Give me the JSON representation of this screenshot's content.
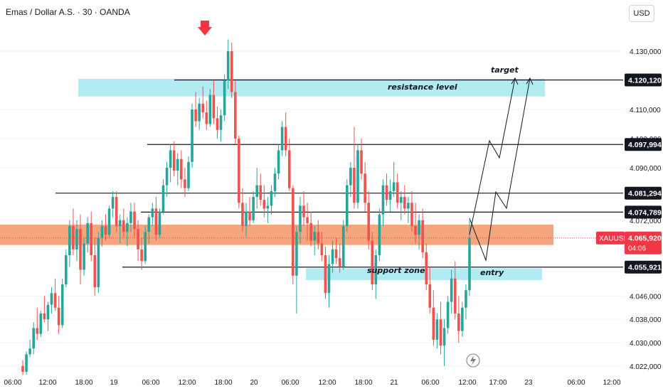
{
  "header": {
    "symbol_title": "Emas / Dollar A.S. · 30 · OANDA",
    "currency_button": "USD"
  },
  "price_axis": {
    "ticks": [
      4130,
      4110,
      4100,
      4090,
      4072,
      4046,
      4038,
      4030,
      4022
    ],
    "tick_labels": [
      "4.130,000",
      "4.110,000",
      "4.100,000",
      "4.090,000",
      "4.072,000",
      "4.046,000",
      "4.038,000",
      "4.030,000",
      "4.022,000"
    ]
  },
  "time_axis": {
    "labels": [
      "06:00",
      "12:00",
      "18:00",
      "19",
      "06:00",
      "12:00",
      "18:00",
      "20",
      "06:00",
      "12:00",
      "18:00",
      "21",
      "06:00",
      "12:00",
      "17:00",
      "23",
      "06:00",
      "12:00"
    ]
  },
  "levels": [
    {
      "value": 4120.12,
      "label": "4.120,120"
    },
    {
      "value": 4097.994,
      "label": "4.097,994"
    },
    {
      "value": 4081.294,
      "label": "4.081,294"
    },
    {
      "value": 4074.789,
      "label": "4.074,789"
    },
    {
      "value": 4055.921,
      "label": "4.055,921"
    }
  ],
  "current_price": {
    "symbol": "XAUUSD",
    "value": 4065.92,
    "label": "4.065,920",
    "countdown": "04:06"
  },
  "zones": {
    "resistance": {
      "label": "resistance level",
      "from": 4114.5,
      "to": 4120.5
    },
    "support": {
      "label": "support zone",
      "from": 4051.5,
      "to": 4055.5
    },
    "entry_zone": {
      "from": 4063.5,
      "to": 4070.5
    }
  },
  "annotations": {
    "target": "target",
    "entry": "entry"
  },
  "colors": {
    "up": "#26a69a",
    "down": "#ef5350",
    "resistance_zone": "#b2ebf2",
    "entry_zone": "#f4a77e",
    "support_zone": "#b2ebf2",
    "current_price_tag": "#f23645",
    "level_tag": "#131722",
    "marker": "#f23645"
  },
  "chart_data": {
    "type": "candlestick",
    "title": "Emas / Dollar A.S. · 30 · OANDA",
    "ylim": [
      4018,
      4136
    ],
    "series": [
      {
        "name": "XAUUSD",
        "candles": [
          [
            4022,
            4024,
            4019,
            4020
          ],
          [
            4020,
            4027,
            4019,
            4026
          ],
          [
            4026,
            4031,
            4025,
            4028
          ],
          [
            4028,
            4037,
            4026,
            4035
          ],
          [
            4035,
            4042,
            4031,
            4033
          ],
          [
            4033,
            4041,
            4032,
            4040
          ],
          [
            4040,
            4046,
            4037,
            4038
          ],
          [
            4038,
            4044,
            4034,
            4043
          ],
          [
            4043,
            4049,
            4040,
            4047
          ],
          [
            4047,
            4052,
            4041,
            4042
          ],
          [
            4042,
            4046,
            4033,
            4036
          ],
          [
            4036,
            4052,
            4035,
            4050
          ],
          [
            4050,
            4062,
            4049,
            4060
          ],
          [
            4060,
            4072,
            4056,
            4070
          ],
          [
            4070,
            4076,
            4060,
            4062
          ],
          [
            4062,
            4072,
            4058,
            4069
          ],
          [
            4069,
            4074,
            4050,
            4055
          ],
          [
            4055,
            4066,
            4053,
            4064
          ],
          [
            4064,
            4073,
            4061,
            4071
          ],
          [
            4071,
            4075,
            4058,
            4060
          ],
          [
            4060,
            4066,
            4046,
            4049
          ],
          [
            4049,
            4068,
            4047,
            4066
          ],
          [
            4066,
            4072,
            4063,
            4070
          ],
          [
            4070,
            4074,
            4065,
            4067
          ],
          [
            4067,
            4077,
            4066,
            4076
          ],
          [
            4076,
            4082,
            4073,
            4080
          ],
          [
            4080,
            4082,
            4068,
            4070
          ],
          [
            4070,
            4074,
            4064,
            4072
          ],
          [
            4072,
            4076,
            4066,
            4068
          ],
          [
            4068,
            4073,
            4063,
            4071
          ],
          [
            4071,
            4078,
            4068,
            4075
          ],
          [
            4075,
            4078,
            4066,
            4069
          ],
          [
            4069,
            4072,
            4058,
            4062
          ],
          [
            4062,
            4066,
            4055,
            4058
          ],
          [
            4058,
            4070,
            4057,
            4068
          ],
          [
            4068,
            4074,
            4064,
            4073
          ],
          [
            4073,
            4078,
            4070,
            4076
          ],
          [
            4076,
            4080,
            4065,
            4067
          ],
          [
            4067,
            4076,
            4066,
            4075
          ],
          [
            4075,
            4086,
            4074,
            4084
          ],
          [
            4084,
            4092,
            4080,
            4090
          ],
          [
            4090,
            4098,
            4085,
            4096
          ],
          [
            4096,
            4099,
            4087,
            4089
          ],
          [
            4089,
            4095,
            4084,
            4093
          ],
          [
            4093,
            4096,
            4083,
            4086
          ],
          [
            4086,
            4090,
            4080,
            4083
          ],
          [
            4083,
            4094,
            4082,
            4092
          ],
          [
            4092,
            4112,
            4090,
            4110
          ],
          [
            4110,
            4116,
            4104,
            4106
          ],
          [
            4106,
            4114,
            4103,
            4112
          ],
          [
            4112,
            4118,
            4107,
            4109
          ],
          [
            4109,
            4113,
            4103,
            4105
          ],
          [
            4105,
            4117,
            4104,
            4115
          ],
          [
            4115,
            4120,
            4105,
            4107
          ],
          [
            4107,
            4111,
            4100,
            4103
          ],
          [
            4103,
            4110,
            4099,
            4108
          ],
          [
            4108,
            4122,
            4106,
            4120
          ],
          [
            4120,
            4134,
            4117,
            4130
          ],
          [
            4130,
            4133,
            4114,
            4116
          ],
          [
            4116,
            4120,
            4098,
            4100
          ],
          [
            4100,
            4101,
            4076,
            4078
          ],
          [
            4078,
            4083,
            4068,
            4070
          ],
          [
            4070,
            4078,
            4066,
            4075
          ],
          [
            4075,
            4080,
            4070,
            4072
          ],
          [
            4072,
            4082,
            4071,
            4080
          ],
          [
            4080,
            4090,
            4076,
            4084
          ],
          [
            4084,
            4088,
            4077,
            4079
          ],
          [
            4079,
            4084,
            4073,
            4076
          ],
          [
            4076,
            4080,
            4071,
            4077
          ],
          [
            4077,
            4084,
            4074,
            4082
          ],
          [
            4082,
            4090,
            4080,
            4088
          ],
          [
            4088,
            4098,
            4086,
            4096
          ],
          [
            4096,
            4106,
            4094,
            4104
          ],
          [
            4104,
            4109,
            4094,
            4096
          ],
          [
            4096,
            4100,
            4082,
            4083
          ],
          [
            4083,
            4084,
            4050,
            4053
          ],
          [
            4053,
            4070,
            4040,
            4068
          ],
          [
            4068,
            4080,
            4064,
            4077
          ],
          [
            4077,
            4082,
            4070,
            4073
          ],
          [
            4073,
            4078,
            4065,
            4071
          ],
          [
            4071,
            4075,
            4063,
            4065
          ],
          [
            4065,
            4070,
            4060,
            4068
          ],
          [
            4068,
            4072,
            4062,
            4064
          ],
          [
            4064,
            4068,
            4058,
            4060
          ],
          [
            4060,
            4063,
            4045,
            4047
          ],
          [
            4047,
            4060,
            4042,
            4057
          ],
          [
            4057,
            4065,
            4054,
            4062
          ],
          [
            4062,
            4066,
            4057,
            4059
          ],
          [
            4059,
            4064,
            4054,
            4056
          ],
          [
            4056,
            4072,
            4055,
            4070
          ],
          [
            4070,
            4086,
            4068,
            4084
          ],
          [
            4084,
            4092,
            4080,
            4090
          ],
          [
            4090,
            4104,
            4076,
            4078
          ],
          [
            4078,
            4098,
            4076,
            4096
          ],
          [
            4096,
            4100,
            4086,
            4088
          ],
          [
            4088,
            4092,
            4075,
            4078
          ],
          [
            4078,
            4082,
            4062,
            4065
          ],
          [
            4065,
            4068,
            4048,
            4050
          ],
          [
            4050,
            4062,
            4045,
            4060
          ],
          [
            4060,
            4076,
            4058,
            4074
          ],
          [
            4074,
            4086,
            4070,
            4084
          ],
          [
            4084,
            4088,
            4077,
            4079
          ],
          [
            4079,
            4086,
            4075,
            4082
          ],
          [
            4082,
            4092,
            4080,
            4085
          ],
          [
            4085,
            4088,
            4076,
            4078
          ],
          [
            4078,
            4082,
            4072,
            4080
          ],
          [
            4080,
            4084,
            4074,
            4076
          ],
          [
            4076,
            4080,
            4071,
            4078
          ],
          [
            4078,
            4082,
            4068,
            4070
          ],
          [
            4070,
            4078,
            4064,
            4067
          ],
          [
            4067,
            4074,
            4062,
            4072
          ],
          [
            4072,
            4076,
            4059,
            4061
          ],
          [
            4061,
            4064,
            4048,
            4050
          ],
          [
            4050,
            4056,
            4040,
            4042
          ],
          [
            4042,
            4048,
            4029,
            4031
          ],
          [
            4031,
            4040,
            4028,
            4038
          ],
          [
            4038,
            4044,
            4026,
            4029
          ],
          [
            4029,
            4038,
            4022,
            4035
          ],
          [
            4035,
            4046,
            4033,
            4044
          ],
          [
            4044,
            4055,
            4040,
            4052
          ],
          [
            4052,
            4058,
            4038,
            4040
          ],
          [
            4040,
            4046,
            4030,
            4034
          ],
          [
            4034,
            4044,
            4032,
            4042
          ],
          [
            4042,
            4050,
            4038,
            4048
          ],
          [
            4048,
            4072,
            4046,
            4066
          ]
        ]
      }
    ]
  }
}
